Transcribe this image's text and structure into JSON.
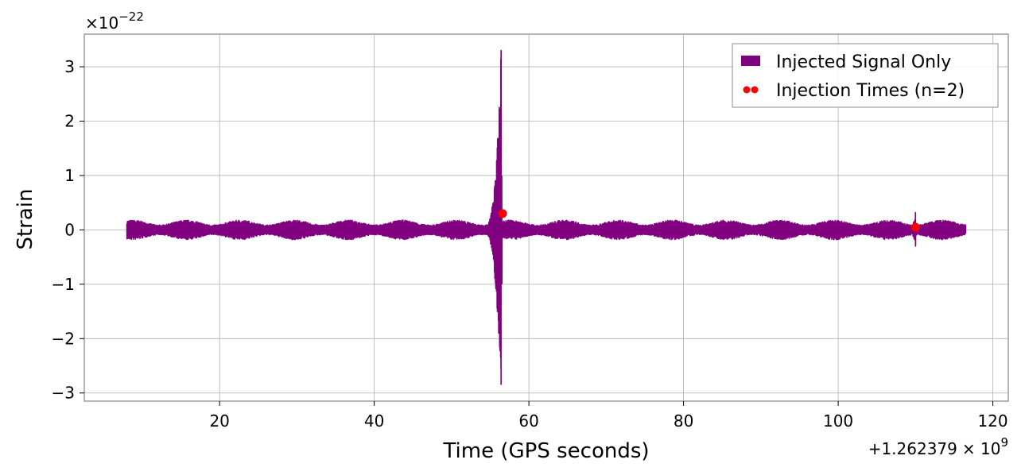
{
  "chart_data": {
    "type": "line",
    "title": "",
    "xlabel": "Time (GPS seconds)",
    "ylabel": "Strain",
    "x_offset_label_main": "+1.262379",
    "x_offset_label_times": "× 10",
    "x_offset_exponent": "9",
    "y_scale_label_main": "×10",
    "y_scale_exponent": "−22",
    "xlim": [
      2.5,
      122
    ],
    "ylim": [
      -3.15,
      3.6
    ],
    "x_ticks": [
      20,
      40,
      60,
      80,
      100,
      120
    ],
    "x_tick_labels": [
      "20",
      "40",
      "60",
      "80",
      "100",
      "120"
    ],
    "y_ticks": [
      -3,
      -2,
      -1,
      0,
      1,
      2,
      3
    ],
    "y_tick_labels": [
      "−3",
      "−2",
      "−1",
      "0",
      "1",
      "2",
      "3"
    ],
    "grid": true,
    "legend_position": "top-right",
    "series": [
      {
        "name": "Injected Signal Only",
        "kind": "line",
        "color": "#800080",
        "t_start": 8,
        "t_end": 116.5,
        "baseline_noise_amplitude": 0.12,
        "events": [
          {
            "time": 56.4,
            "peak_max": 3.3,
            "peak_min": -2.85,
            "envelope_start": 53.5
          },
          {
            "time": 110.0,
            "peak_max": 0.32,
            "peak_min": -0.3,
            "envelope_start": 108.5
          }
        ]
      },
      {
        "name": "Injection Times (n=2)",
        "kind": "scatter",
        "color": "#ff0000",
        "x": [
          56.6,
          110.0
        ],
        "y": [
          0.3,
          0.05
        ]
      }
    ]
  }
}
